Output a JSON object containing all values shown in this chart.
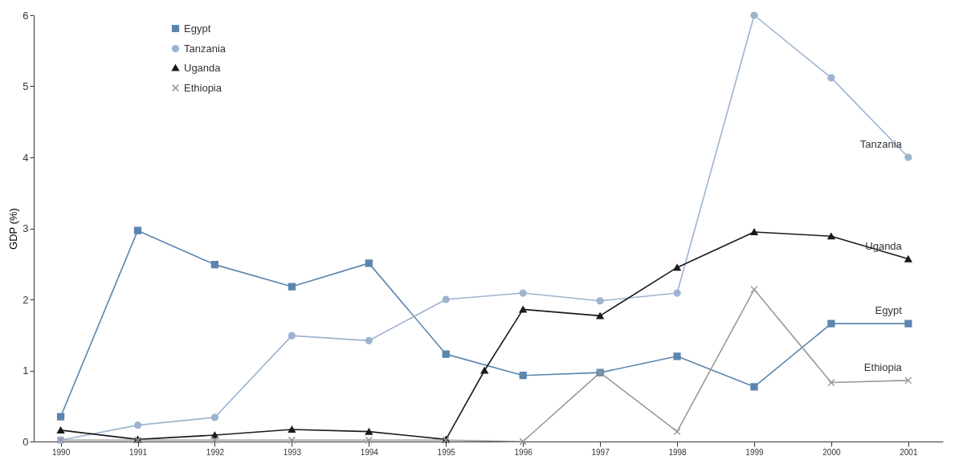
{
  "chart_data": {
    "type": "line",
    "ylabel": "GDP (%)",
    "xlim": [
      1989.65,
      2001.45
    ],
    "xticks": [
      1990,
      1991,
      1992,
      1993,
      1994,
      1995,
      1996,
      1997,
      1998,
      1999,
      2000,
      2001
    ],
    "ylim": [
      0,
      6
    ],
    "yticks": [
      0,
      1,
      2,
      3,
      4,
      5,
      6
    ],
    "grid": false,
    "legend": "top left",
    "series": [
      {
        "name": "Egypt",
        "color": "#5b86ae",
        "marker": "square",
        "x": [
          1990,
          1991,
          1992,
          1993,
          1994,
          1995,
          1996,
          1997,
          1998,
          1999,
          2000,
          2001
        ],
        "values": [
          0.35,
          2.97,
          2.49,
          2.18,
          2.51,
          1.23,
          0.93,
          0.97,
          1.2,
          0.77,
          1.66,
          1.66
        ]
      },
      {
        "name": "Tanzania",
        "color": "#9db4cf",
        "marker": "circle",
        "x": [
          1990,
          1991,
          1992,
          1993,
          1994,
          1995,
          1996,
          1997,
          1998,
          1999,
          2000,
          2001
        ],
        "values": [
          0.02,
          0.23,
          0.34,
          1.49,
          1.42,
          2.0,
          2.09,
          1.98,
          2.09,
          6.0,
          5.12,
          4.0
        ]
      },
      {
        "name": "Uganda",
        "color": "#1a1a1a",
        "marker": "triangle",
        "x": [
          1990,
          1991,
          1992,
          1993,
          1994,
          1995,
          1995.5,
          1996,
          1997,
          1998,
          1999,
          2000,
          2001
        ],
        "values": [
          0.16,
          0.03,
          0.09,
          0.17,
          0.14,
          0.03,
          1.0,
          1.86,
          1.77,
          2.45,
          2.95,
          2.89,
          2.57
        ]
      },
      {
        "name": "Ethiopia",
        "color": "#9a9a9a",
        "marker": "cross",
        "x": [
          1990,
          1991,
          1992,
          1993,
          1994,
          1995,
          1996,
          1997,
          1998,
          1999,
          2000,
          2001
        ],
        "values": [
          0.02,
          0.02,
          0.02,
          0.02,
          0.02,
          0.02,
          0.0,
          0.97,
          0.14,
          2.14,
          0.83,
          0.86
        ]
      }
    ],
    "annotations": [
      "Egypt",
      "Tanzania",
      "Uganda",
      "Ethiopia"
    ]
  }
}
